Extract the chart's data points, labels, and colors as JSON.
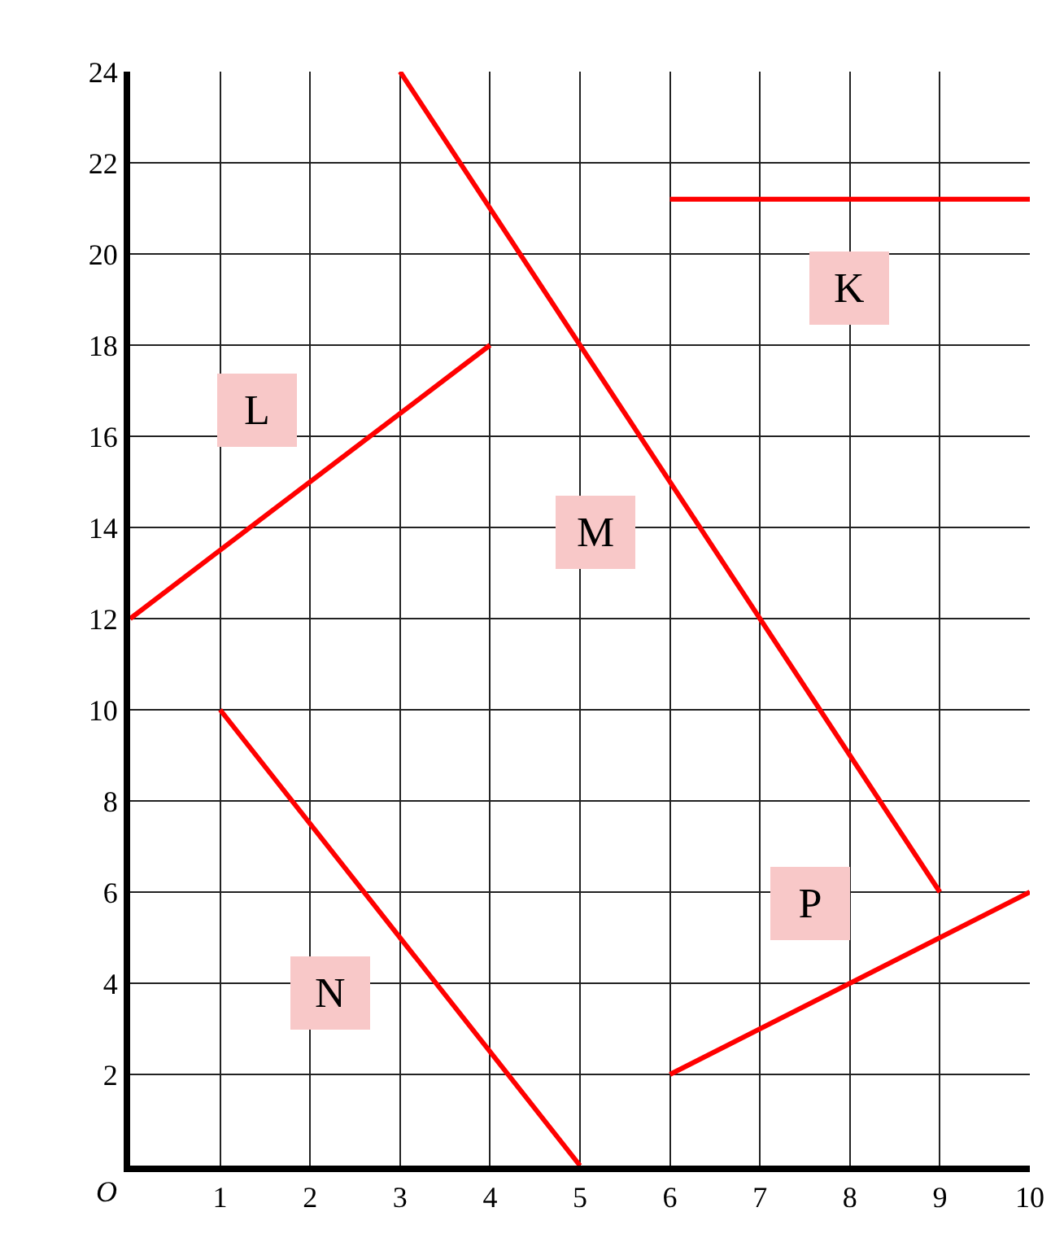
{
  "chart_data": {
    "type": "line",
    "xlim": [
      0,
      10
    ],
    "ylim": [
      0,
      24
    ],
    "xticks": [
      1,
      2,
      3,
      4,
      5,
      6,
      7,
      8,
      9,
      10
    ],
    "yticks": [
      {
        "value": 0,
        "label": null
      },
      2,
      4,
      6,
      8,
      10,
      12,
      14,
      16,
      18,
      20,
      22,
      24
    ],
    "grid": true,
    "marker": "none",
    "line_style": "solid",
    "series": [
      {
        "name": "K",
        "color": "#ff0000",
        "x": [
          6,
          10
        ],
        "values": [
          21.2,
          21.2
        ]
      },
      {
        "name": "L",
        "color": "#ff0000",
        "x": [
          0,
          4
        ],
        "values": [
          12,
          18
        ]
      },
      {
        "name": "M",
        "color": "#ff0000",
        "x": [
          3,
          9
        ],
        "values": [
          24,
          6
        ]
      },
      {
        "name": "N",
        "color": "#ff0000",
        "x": [
          1,
          5
        ],
        "values": [
          10,
          0
        ]
      },
      {
        "name": "P",
        "color": "#ff0000",
        "x": [
          6,
          10
        ],
        "values": [
          2,
          6
        ]
      }
    ],
    "annotations": [
      "O"
    ]
  }
}
